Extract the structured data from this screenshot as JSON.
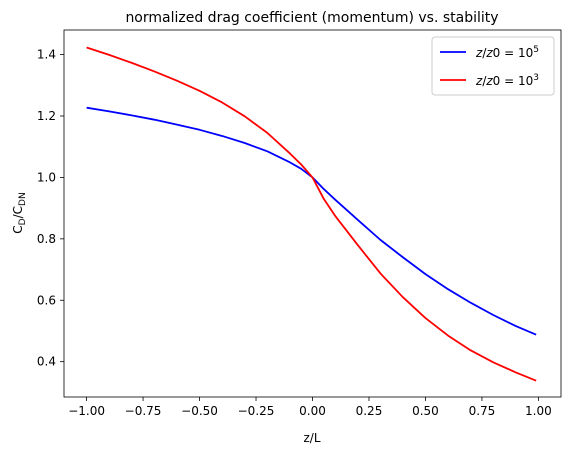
{
  "chart_data": {
    "type": "line",
    "title": "normalized drag coefficient (momentum) vs. stability",
    "xlabel": "z/L",
    "ylabel": "C_D/C_DN",
    "xlim": [
      -1.1,
      1.1
    ],
    "ylim": [
      0.285,
      1.48
    ],
    "xticks": [
      -1.0,
      -0.75,
      -0.5,
      -0.25,
      0.0,
      0.25,
      0.5,
      0.75,
      1.0
    ],
    "xtick_labels": [
      "−1.00",
      "−0.75",
      "−0.50",
      "−0.25",
      "0.00",
      "0.25",
      "0.50",
      "0.75",
      "1.00"
    ],
    "yticks": [
      0.4,
      0.6,
      0.8,
      1.0,
      1.2,
      1.4
    ],
    "ytick_labels": [
      "0.4",
      "0.6",
      "0.8",
      "1.0",
      "1.2",
      "1.4"
    ],
    "grid": false,
    "legend_position": "top-right",
    "series": [
      {
        "name": "z/z0 = 10^5",
        "color": "#0000ff",
        "x": [
          -1.0,
          -0.9,
          -0.8,
          -0.7,
          -0.6,
          -0.5,
          -0.4,
          -0.3,
          -0.2,
          -0.1,
          -0.05,
          0.0,
          0.05,
          0.1,
          0.2,
          0.3,
          0.4,
          0.5,
          0.6,
          0.7,
          0.8,
          0.9,
          0.99
        ],
        "y": [
          1.227,
          1.215,
          1.202,
          1.188,
          1.172,
          1.155,
          1.135,
          1.112,
          1.085,
          1.049,
          1.028,
          1.0,
          0.962,
          0.928,
          0.862,
          0.797,
          0.74,
          0.685,
          0.636,
          0.592,
          0.552,
          0.516,
          0.488
        ]
      },
      {
        "name": "z/z0 = 10^3",
        "color": "#ff0000",
        "x": [
          -1.0,
          -0.9,
          -0.8,
          -0.7,
          -0.6,
          -0.5,
          -0.4,
          -0.3,
          -0.2,
          -0.1,
          -0.05,
          0.0,
          0.05,
          0.1,
          0.2,
          0.3,
          0.4,
          0.5,
          0.6,
          0.7,
          0.8,
          0.9,
          0.99
        ],
        "y": [
          1.423,
          1.399,
          1.373,
          1.345,
          1.315,
          1.282,
          1.244,
          1.199,
          1.145,
          1.078,
          1.042,
          1.0,
          0.93,
          0.875,
          0.78,
          0.688,
          0.61,
          0.542,
          0.485,
          0.437,
          0.398,
          0.365,
          0.338
        ]
      }
    ]
  }
}
